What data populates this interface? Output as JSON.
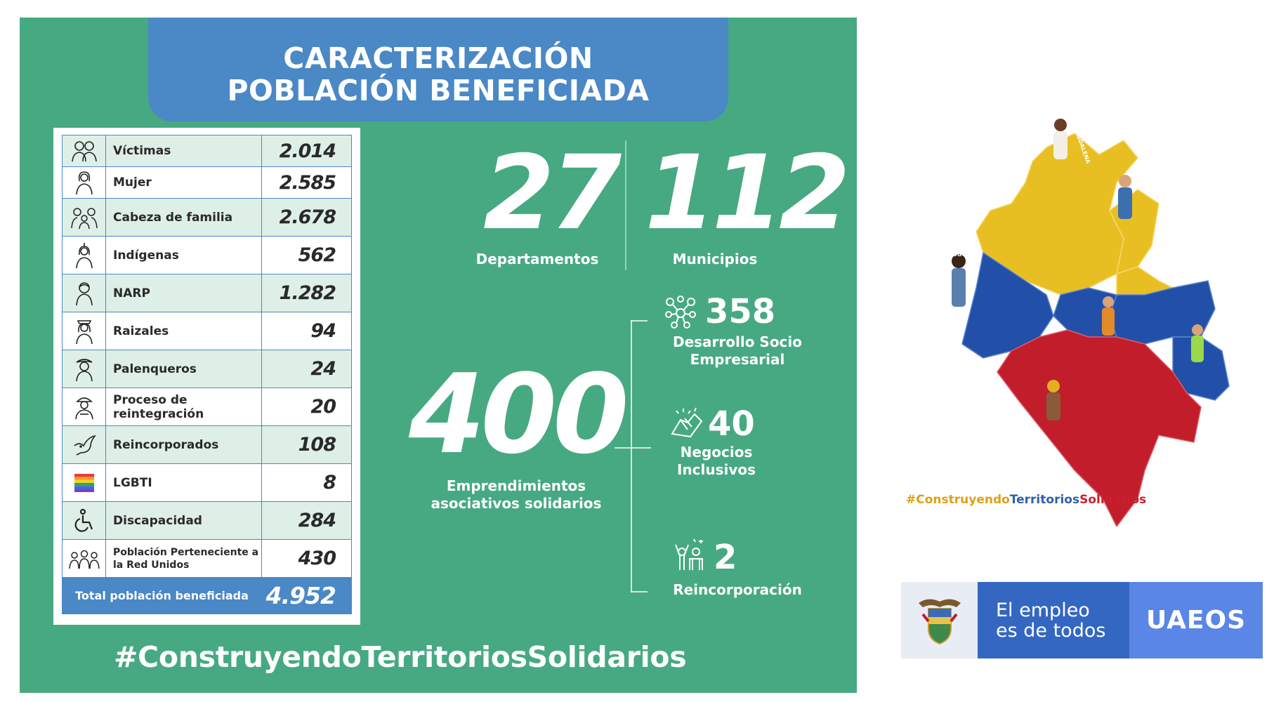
{
  "header": {
    "line1": "CARACTERIZACIÓN",
    "line2": "POBLACIÓN BENEFICIADA"
  },
  "table": {
    "rows": [
      {
        "icon": "victims-group-icon",
        "label": "Víctimas",
        "value": "2.014"
      },
      {
        "icon": "woman-icon",
        "label": "Mujer",
        "value": "2.585"
      },
      {
        "icon": "family-icon",
        "label": "Cabeza de familia",
        "value": "2.678"
      },
      {
        "icon": "indigenous-person-icon",
        "label": "Indígenas",
        "value": "562"
      },
      {
        "icon": "person-icon",
        "label": "NARP",
        "value": "1.282"
      },
      {
        "icon": "raizal-person-icon",
        "label": "Raizales",
        "value": "94"
      },
      {
        "icon": "palenquero-person-icon",
        "label": "Palenqueros",
        "value": "24"
      },
      {
        "icon": "soldier-icon",
        "label": "Proceso de reintegración",
        "value": "20"
      },
      {
        "icon": "dove-icon",
        "label": "Reincorporados",
        "value": "108"
      },
      {
        "icon": "rainbow-flag-icon",
        "label": "LGBTI",
        "value": "8"
      },
      {
        "icon": "wheelchair-icon",
        "label": "Discapacidad",
        "value": "284"
      },
      {
        "icon": "group-icon",
        "label": "Población Perteneciente a la Red Unidos",
        "value": "430"
      }
    ],
    "total_label": "Total población beneficiada",
    "total_value": "4.952"
  },
  "stats": {
    "departments_value": "27",
    "departments_label": "Departamentos",
    "municipalities_value": "112",
    "municipalities_label": "Municipios",
    "ventures_value": "400",
    "ventures_label_line1": "Emprendimientos",
    "ventures_label_line2": "asociativos solidarios",
    "sub": [
      {
        "icon": "network-people-icon",
        "value": "358",
        "label_line1": "Desarrollo Socio",
        "label_line2": "Empresarial"
      },
      {
        "icon": "handshake-icon",
        "value": "40",
        "label_line1": "Negocios",
        "label_line2": "Inclusivos"
      },
      {
        "icon": "celebrating-people-icon",
        "value": "2",
        "label_line1": "Reincorporación",
        "label_line2": ""
      }
    ]
  },
  "hashtag_main": "#ConstruyendoTerritoriosSolidarios",
  "map": {
    "label_magdalena": "MAGDALENA",
    "label_bogota": "BOGOTÁ",
    "hashtag_part1": "#Construyendo",
    "hashtag_part2": "Territorios",
    "hashtag_part3": "Solidarios",
    "color_yellow": "#e8bf22",
    "color_blue": "#2250a8",
    "color_red": "#c21d2b"
  },
  "footer": {
    "slogan_line1": "El empleo",
    "slogan_line2": "es de todos",
    "brand": "UAEOS"
  }
}
